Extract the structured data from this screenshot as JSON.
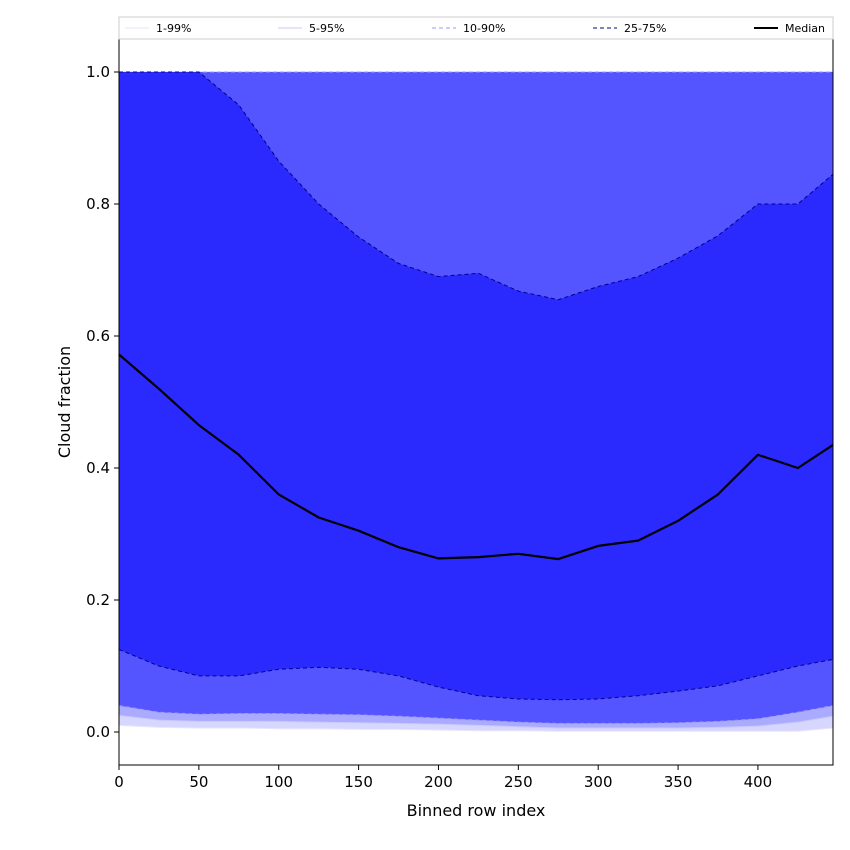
{
  "chart_data": {
    "type": "area",
    "title": "",
    "xlabel": "Binned row index",
    "ylabel": "Cloud fraction",
    "xlim": [
      0,
      447
    ],
    "ylim": [
      -0.05,
      1.05
    ],
    "xticks": [
      0,
      50,
      100,
      150,
      200,
      250,
      300,
      350,
      400
    ],
    "yticks": [
      0.0,
      0.2,
      0.4,
      0.6,
      0.8,
      1.0
    ],
    "xtick_labels": [
      "0",
      "50",
      "100",
      "150",
      "200",
      "250",
      "300",
      "350",
      "400"
    ],
    "ytick_labels": [
      "0.0",
      "0.2",
      "0.4",
      "0.6",
      "0.8",
      "1.0"
    ],
    "grid": false,
    "legend_position": "top",
    "x": [
      0,
      25,
      50,
      75,
      100,
      125,
      150,
      175,
      200,
      225,
      250,
      275,
      300,
      325,
      350,
      375,
      400,
      425,
      447
    ],
    "bands": [
      {
        "name": "1-99%",
        "color": "#d6d6ff",
        "line_color": "#e6e6ff",
        "line_style": "solid",
        "lower": [
          0.01,
          0.007,
          0.006,
          0.006,
          0.005,
          0.005,
          0.004,
          0.004,
          0.003,
          0.002,
          0.002,
          0.001,
          0.001,
          0.001,
          0.001,
          0.001,
          0.001,
          0.001,
          0.006
        ],
        "upper": [
          1.0,
          1.0,
          1.0,
          1.0,
          1.0,
          1.0,
          1.0,
          1.0,
          1.0,
          1.0,
          1.0,
          1.0,
          1.0,
          1.0,
          1.0,
          1.0,
          1.0,
          1.0,
          1.0
        ]
      },
      {
        "name": "5-95%",
        "color": "#aaaaff",
        "line_color": "#c8c8ff",
        "line_style": "solid",
        "lower": [
          0.025,
          0.018,
          0.016,
          0.016,
          0.016,
          0.015,
          0.014,
          0.013,
          0.012,
          0.01,
          0.008,
          0.006,
          0.006,
          0.006,
          0.006,
          0.007,
          0.009,
          0.015,
          0.024
        ],
        "upper": [
          1.0,
          1.0,
          1.0,
          1.0,
          1.0,
          1.0,
          1.0,
          1.0,
          1.0,
          1.0,
          1.0,
          1.0,
          1.0,
          1.0,
          1.0,
          1.0,
          1.0,
          1.0,
          1.0
        ]
      },
      {
        "name": "10-90%",
        "color": "#5555ff",
        "line_color": "#9999ff",
        "line_style": "dashed",
        "lower": [
          0.04,
          0.03,
          0.027,
          0.028,
          0.028,
          0.027,
          0.026,
          0.024,
          0.021,
          0.018,
          0.015,
          0.013,
          0.013,
          0.013,
          0.014,
          0.016,
          0.02,
          0.03,
          0.04
        ],
        "upper": [
          1.0,
          1.0,
          1.0,
          1.0,
          1.0,
          1.0,
          1.0,
          1.0,
          1.0,
          1.0,
          1.0,
          1.0,
          1.0,
          1.0,
          1.0,
          1.0,
          1.0,
          1.0,
          1.0
        ]
      },
      {
        "name": "25-75%",
        "color": "#2a2aff",
        "line_color": "#00008b",
        "line_style": "dashed",
        "lower": [
          0.125,
          0.1,
          0.085,
          0.085,
          0.095,
          0.098,
          0.095,
          0.085,
          0.068,
          0.055,
          0.05,
          0.049,
          0.05,
          0.055,
          0.062,
          0.07,
          0.085,
          0.1,
          0.11
        ],
        "upper": [
          1.0,
          1.0,
          1.0,
          0.95,
          0.865,
          0.8,
          0.75,
          0.71,
          0.69,
          0.695,
          0.668,
          0.655,
          0.675,
          0.69,
          0.718,
          0.752,
          0.8,
          0.8,
          0.845
        ]
      }
    ],
    "series": [
      {
        "name": "Median",
        "color": "#000000",
        "values": [
          0.572,
          0.52,
          0.465,
          0.42,
          0.36,
          0.325,
          0.305,
          0.28,
          0.263,
          0.265,
          0.27,
          0.262,
          0.282,
          0.29,
          0.32,
          0.36,
          0.42,
          0.4,
          0.435
        ]
      }
    ],
    "legend": [
      "1-99%",
      "5-95%",
      "10-90%",
      "25-75%",
      "Median"
    ]
  }
}
